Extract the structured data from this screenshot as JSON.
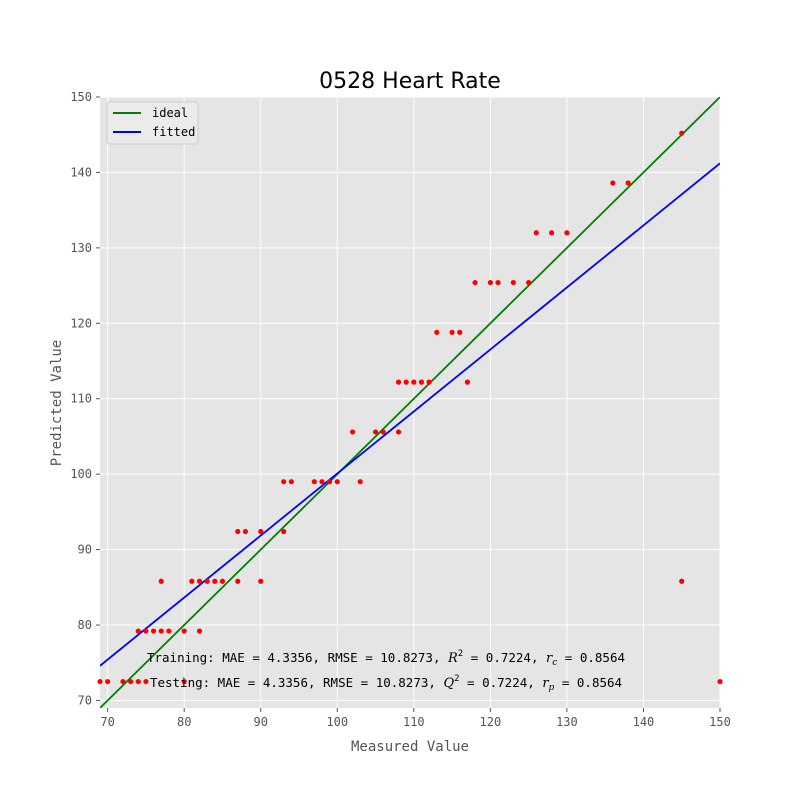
{
  "chart_data": {
    "type": "scatter",
    "title": "0528 Heart Rate",
    "xlabel": "Measured Value",
    "ylabel": "Predicted Value",
    "xlim": [
      69,
      150
    ],
    "ylim": [
      69,
      150
    ],
    "xticks": [
      70,
      80,
      90,
      100,
      110,
      120,
      130,
      140,
      150
    ],
    "yticks": [
      70,
      80,
      90,
      100,
      110,
      120,
      130,
      140,
      150
    ],
    "grid": true,
    "legend_position": "upper left",
    "legend": [
      {
        "label": "ideal",
        "color": "#008000"
      },
      {
        "label": "fitted",
        "color": "#0000ff"
      }
    ],
    "lines": [
      {
        "name": "ideal",
        "color": "#008000",
        "points": [
          [
            69,
            69
          ],
          [
            150,
            150
          ]
        ]
      },
      {
        "name": "fitted",
        "color": "#0000ff",
        "points": [
          [
            69,
            74.6
          ],
          [
            150,
            141.2
          ]
        ]
      }
    ],
    "points_color": "#ff0000",
    "points": [
      [
        69,
        72.5
      ],
      [
        70,
        72.5
      ],
      [
        72,
        72.5
      ],
      [
        73,
        72.5
      ],
      [
        74,
        72.5
      ],
      [
        75,
        72.5
      ],
      [
        80,
        72.5
      ],
      [
        150,
        72.5
      ],
      [
        74,
        79.2
      ],
      [
        75,
        79.2
      ],
      [
        76,
        79.2
      ],
      [
        77,
        79.2
      ],
      [
        78,
        79.2
      ],
      [
        80,
        79.2
      ],
      [
        82,
        79.2
      ],
      [
        77,
        85.8
      ],
      [
        81,
        85.8
      ],
      [
        82,
        85.8
      ],
      [
        83,
        85.8
      ],
      [
        84,
        85.8
      ],
      [
        85,
        85.8
      ],
      [
        87,
        85.8
      ],
      [
        90,
        85.8
      ],
      [
        145,
        85.8
      ],
      [
        87,
        92.4
      ],
      [
        88,
        92.4
      ],
      [
        90,
        92.4
      ],
      [
        93,
        92.4
      ],
      [
        93,
        99.0
      ],
      [
        94,
        99.0
      ],
      [
        97,
        99.0
      ],
      [
        98,
        99.0
      ],
      [
        99,
        99.0
      ],
      [
        100,
        99.0
      ],
      [
        103,
        99.0
      ],
      [
        102,
        105.6
      ],
      [
        105,
        105.6
      ],
      [
        106,
        105.6
      ],
      [
        108,
        105.6
      ],
      [
        108,
        112.2
      ],
      [
        109,
        112.2
      ],
      [
        110,
        112.2
      ],
      [
        111,
        112.2
      ],
      [
        112,
        112.2
      ],
      [
        117,
        112.2
      ],
      [
        113,
        118.8
      ],
      [
        115,
        118.8
      ],
      [
        116,
        118.8
      ],
      [
        118,
        125.4
      ],
      [
        120,
        125.4
      ],
      [
        121,
        125.4
      ],
      [
        123,
        125.4
      ],
      [
        125,
        125.4
      ],
      [
        126,
        132.0
      ],
      [
        128,
        132.0
      ],
      [
        130,
        132.0
      ],
      [
        136,
        138.6
      ],
      [
        138,
        138.6
      ],
      [
        145,
        145.2
      ]
    ],
    "annotations": {
      "training": {
        "prefix": "Training: MAE = 4.3356, RMSE = 10.8273, ",
        "metric1": "R",
        "metric1_sup": "2",
        "metric1_value": " = 0.7224, ",
        "metric2": "r",
        "metric2_sub": "c",
        "metric2_value": " = 0.8564"
      },
      "testing": {
        "prefix": "Testing: MAE = 4.3356, RMSE = 10.8273, ",
        "metric1": "Q",
        "metric1_sup": "2",
        "metric1_value": " = 0.7224, ",
        "metric2": "r",
        "metric2_sub": "p",
        "metric2_value": " = 0.8564"
      }
    }
  }
}
